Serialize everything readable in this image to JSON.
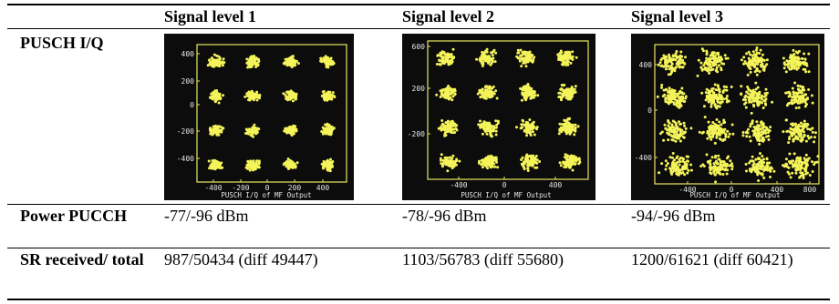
{
  "header": {
    "col1": "Signal level 1",
    "col2": "Signal level 2",
    "col3": "Signal level 3"
  },
  "rows": {
    "pusch_label": "PUSCH I/Q",
    "power_label": "Power PUCCH",
    "sr_label": "SR received/ total"
  },
  "power": {
    "level1": "-77/-96 dBm",
    "level2": "-78/-96 dBm",
    "level3": "-94/-96 dBm"
  },
  "sr": {
    "level1": "987/50434 (diff 49447)",
    "level2": "1103/56783 (diff 55680)",
    "level3": "1200/61621 (diff 60421)"
  },
  "plots": [
    {
      "caption": "PUSCH I/Q of MF Output",
      "y_ticks": [
        "400",
        "200",
        "0",
        "-200",
        "-400"
      ],
      "x_ticks": [
        "-400",
        "-200",
        "0",
        "200",
        "400"
      ]
    },
    {
      "caption": "PUSCH I/Q of MF Output",
      "y_ticks": [
        "600",
        "200",
        "-200"
      ],
      "x_ticks": [
        "-400",
        "0",
        "400"
      ]
    },
    {
      "caption": "PUSCH I/Q of MF Output",
      "y_ticks": [
        "400",
        "0",
        "-400"
      ],
      "x_ticks": [
        "-400",
        "0",
        "400",
        "800"
      ]
    }
  ],
  "colors": {
    "screen_bg": "#0c0c0c",
    "scope_yellow": "#f4f45a",
    "scope_frame": "#e8e860",
    "scope_text": "#e6e6e6"
  }
}
